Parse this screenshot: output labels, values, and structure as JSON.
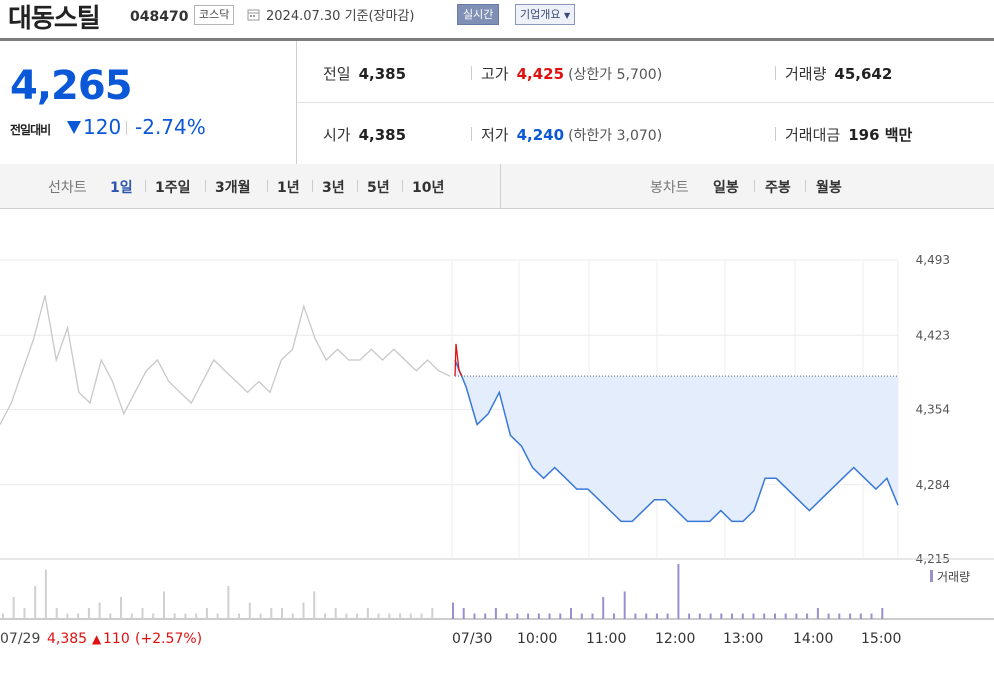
{
  "header": {
    "stock_name": "대동스틸",
    "stock_code": "048470",
    "market": "코스닥",
    "basis": "2024.07.30 기준(장마감)",
    "realtime_button": "실시간",
    "overview_button": "기업개요"
  },
  "price": {
    "current": "4,265",
    "change_label": "전일대비",
    "change": "120",
    "change_pct": "-2.74%",
    "direction": "down"
  },
  "quote": {
    "prev_close": {
      "label": "전일",
      "value": "4,385"
    },
    "high": {
      "label": "고가",
      "value": "4,425",
      "limit": "(상한가 5,700)"
    },
    "volume": {
      "label": "거래량",
      "value": "45,642"
    },
    "open": {
      "label": "시가",
      "value": "4,385"
    },
    "low": {
      "label": "저가",
      "value": "4,240",
      "limit": "(하한가 3,070)"
    },
    "amount": {
      "label": "거래대금",
      "value": "196 백만"
    }
  },
  "tabs": {
    "line_chart_title": "선차트",
    "line_tabs": [
      "1일",
      "1주일",
      "3개월",
      "1년",
      "3년",
      "5년",
      "10년"
    ],
    "active_line_tab": "1일",
    "candle_title": "봉차트",
    "candle_tabs": [
      "일봉",
      "주봉",
      "월봉"
    ]
  },
  "colors": {
    "up": "#e01010",
    "down": "#0a58d8",
    "accent": "#2c55b0"
  },
  "chart_data": {
    "type": "line",
    "y_ticks": [
      "4,493",
      "4,423",
      "4,354",
      "4,284",
      "4,215"
    ],
    "ylim": [
      4215,
      4493
    ],
    "x_ticks": [
      "07/30",
      "10:00",
      "11:00",
      "12:00",
      "13:00",
      "14:00",
      "15:00"
    ],
    "prev_day_label": "07/29",
    "prev_day_close": "4,385",
    "prev_day_change": "110",
    "prev_day_pct": "(+2.57%)",
    "volume_legend": "거래량",
    "reference_price": 4385,
    "series": [
      {
        "name": "07/29",
        "values": [
          4340,
          4360,
          4390,
          4420,
          4460,
          4400,
          4430,
          4370,
          4360,
          4400,
          4380,
          4350,
          4370,
          4390,
          4400,
          4380,
          4370,
          4360,
          4380,
          4400,
          4390,
          4380,
          4370,
          4380,
          4370,
          4400,
          4410,
          4450,
          4420,
          4400,
          4410,
          4400,
          4400,
          4410,
          4400,
          4410,
          4400,
          4390,
          4400,
          4390,
          4385
        ]
      },
      {
        "name": "07/30",
        "values": [
          4400,
          4375,
          4340,
          4350,
          4370,
          4330,
          4320,
          4300,
          4290,
          4300,
          4290,
          4280,
          4280,
          4270,
          4260,
          4250,
          4250,
          4260,
          4270,
          4270,
          4260,
          4250,
          4250,
          4250,
          4260,
          4250,
          4250,
          4260,
          4290,
          4290,
          4280,
          4270,
          4260,
          4270,
          4280,
          4290,
          4300,
          4290,
          4280,
          4290,
          4265
        ]
      }
    ],
    "volume_07_29": [
      1,
      4,
      2,
      6,
      9,
      2,
      1,
      1,
      2,
      3,
      1,
      4,
      1,
      2,
      1,
      5,
      1,
      1,
      1,
      2,
      1,
      6,
      1,
      3,
      1,
      2,
      2,
      1,
      3,
      5,
      1,
      2,
      1,
      1,
      2,
      1,
      1,
      1,
      1,
      1,
      2
    ],
    "volume_07_30": [
      3,
      2,
      1,
      1,
      2,
      1,
      1,
      1,
      1,
      1,
      1,
      2,
      1,
      1,
      4,
      1,
      5,
      1,
      1,
      1,
      1,
      10,
      1,
      1,
      1,
      1,
      1,
      1,
      1,
      1,
      1,
      1,
      1,
      1,
      2,
      1,
      1,
      1,
      1,
      1,
      2
    ]
  }
}
